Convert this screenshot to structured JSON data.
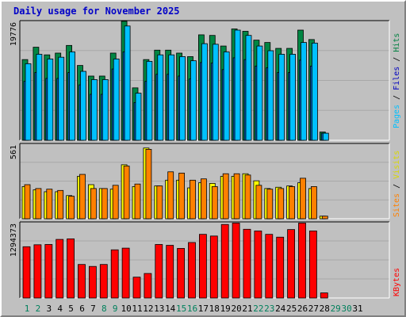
{
  "title": "Daily usage for November 2025",
  "colors": {
    "hits": "#008040",
    "files": "#0080ff",
    "pages": "#00c0ff",
    "visits": "#ffff00",
    "sites": "#ff8000",
    "kbytes": "#ff0000",
    "weekday_label": "#000000",
    "weekend_label": "#00805c",
    "panel_bg": "#c0c0c0",
    "frame": "#c0c0c0"
  },
  "chart_data": [
    {
      "type": "bar",
      "panel": "hits_files_pages",
      "ylabel_max": "19776",
      "ylim": [
        0,
        19776
      ],
      "legend": [
        "Pages",
        "Files",
        "Hits"
      ],
      "categories": [
        "1",
        "2",
        "3",
        "4",
        "5",
        "6",
        "7",
        "8",
        "9",
        "10",
        "11",
        "12",
        "13",
        "14",
        "15",
        "16",
        "17",
        "18",
        "19",
        "20",
        "21",
        "22",
        "23",
        "24",
        "25",
        "26",
        "27",
        "28",
        "29",
        "30",
        "31"
      ],
      "series": [
        {
          "name": "Hits",
          "values": [
            13700,
            15800,
            14500,
            14800,
            16100,
            12700,
            10900,
            10900,
            14800,
            20200,
            8900,
            13700,
            15300,
            15300,
            14800,
            14200,
            17900,
            17800,
            16000,
            18900,
            18500,
            17000,
            16600,
            15600,
            15600,
            18700,
            17100,
            1400,
            0,
            0,
            0
          ]
        },
        {
          "name": "Files",
          "values": [
            10000,
            11500,
            10500,
            10500,
            11500,
            9400,
            7800,
            7800,
            12100,
            15000,
            6400,
            10000,
            11200,
            11200,
            10900,
            10400,
            13200,
            13100,
            12000,
            14000,
            13700,
            12600,
            12300,
            11500,
            11500,
            13600,
            12600,
            1200,
            0,
            0,
            0
          ]
        },
        {
          "name": "Pages",
          "values": [
            13000,
            14600,
            13800,
            14100,
            15000,
            11700,
            10300,
            10300,
            13800,
            19400,
            8000,
            13400,
            14500,
            14500,
            14200,
            13500,
            16400,
            16300,
            15000,
            18700,
            17800,
            16000,
            15200,
            14600,
            14600,
            16600,
            16500,
            1200,
            0,
            0,
            0
          ]
        }
      ]
    },
    {
      "type": "bar",
      "panel": "visits_sites",
      "ylabel_max": "561",
      "ylim": [
        0,
        561
      ],
      "legend": [
        "Sites",
        "Visits"
      ],
      "categories": [
        "1",
        "2",
        "3",
        "4",
        "5",
        "6",
        "7",
        "8",
        "9",
        "10",
        "11",
        "12",
        "13",
        "14",
        "15",
        "16",
        "17",
        "18",
        "19",
        "20",
        "21",
        "22",
        "23",
        "24",
        "25",
        "26",
        "27",
        "28",
        "29",
        "30",
        "31"
      ],
      "series": [
        {
          "name": "Visits",
          "values": [
            250,
            225,
            210,
            210,
            180,
            330,
            265,
            235,
            230,
            420,
            250,
            550,
            255,
            300,
            300,
            240,
            280,
            275,
            330,
            330,
            350,
            295,
            235,
            245,
            255,
            280,
            235,
            20,
            0,
            0,
            0
          ]
        },
        {
          "name": "Sites",
          "values": [
            265,
            235,
            230,
            220,
            175,
            345,
            235,
            235,
            260,
            410,
            270,
            540,
            255,
            365,
            355,
            300,
            310,
            250,
            350,
            350,
            340,
            260,
            230,
            235,
            250,
            315,
            250,
            20,
            0,
            0,
            0
          ]
        }
      ]
    },
    {
      "type": "bar",
      "panel": "kbytes",
      "ylabel_max": "1294373",
      "ylim": [
        0,
        1294373
      ],
      "legend": [
        "KBytes"
      ],
      "categories": [
        "1",
        "2",
        "3",
        "4",
        "5",
        "6",
        "7",
        "8",
        "9",
        "10",
        "11",
        "12",
        "13",
        "14",
        "15",
        "16",
        "17",
        "18",
        "19",
        "20",
        "21",
        "22",
        "23",
        "24",
        "25",
        "26",
        "27",
        "28",
        "29",
        "30",
        "31"
      ],
      "series": [
        {
          "name": "KBytes",
          "values": [
            910000,
            945000,
            950000,
            1040000,
            1050000,
            595000,
            560000,
            595000,
            855000,
            885000,
            370000,
            435000,
            950000,
            935000,
            880000,
            985000,
            1130000,
            1100000,
            1305000,
            1330000,
            1220000,
            1190000,
            1130000,
            1080000,
            1215000,
            1330000,
            1190000,
            90000,
            0,
            0,
            0
          ]
        }
      ]
    }
  ],
  "day_labels": [
    "1",
    "2",
    "3",
    "4",
    "5",
    "6",
    "7",
    "8",
    "9",
    "10",
    "11",
    "12",
    "13",
    "14",
    "15",
    "16",
    "17",
    "18",
    "19",
    "20",
    "21",
    "22",
    "23",
    "24",
    "25",
    "26",
    "27",
    "28",
    "29",
    "30",
    "31"
  ],
  "weekend_days": [
    "1",
    "2",
    "8",
    "9",
    "15",
    "16",
    "22",
    "23",
    "29",
    "30"
  ]
}
